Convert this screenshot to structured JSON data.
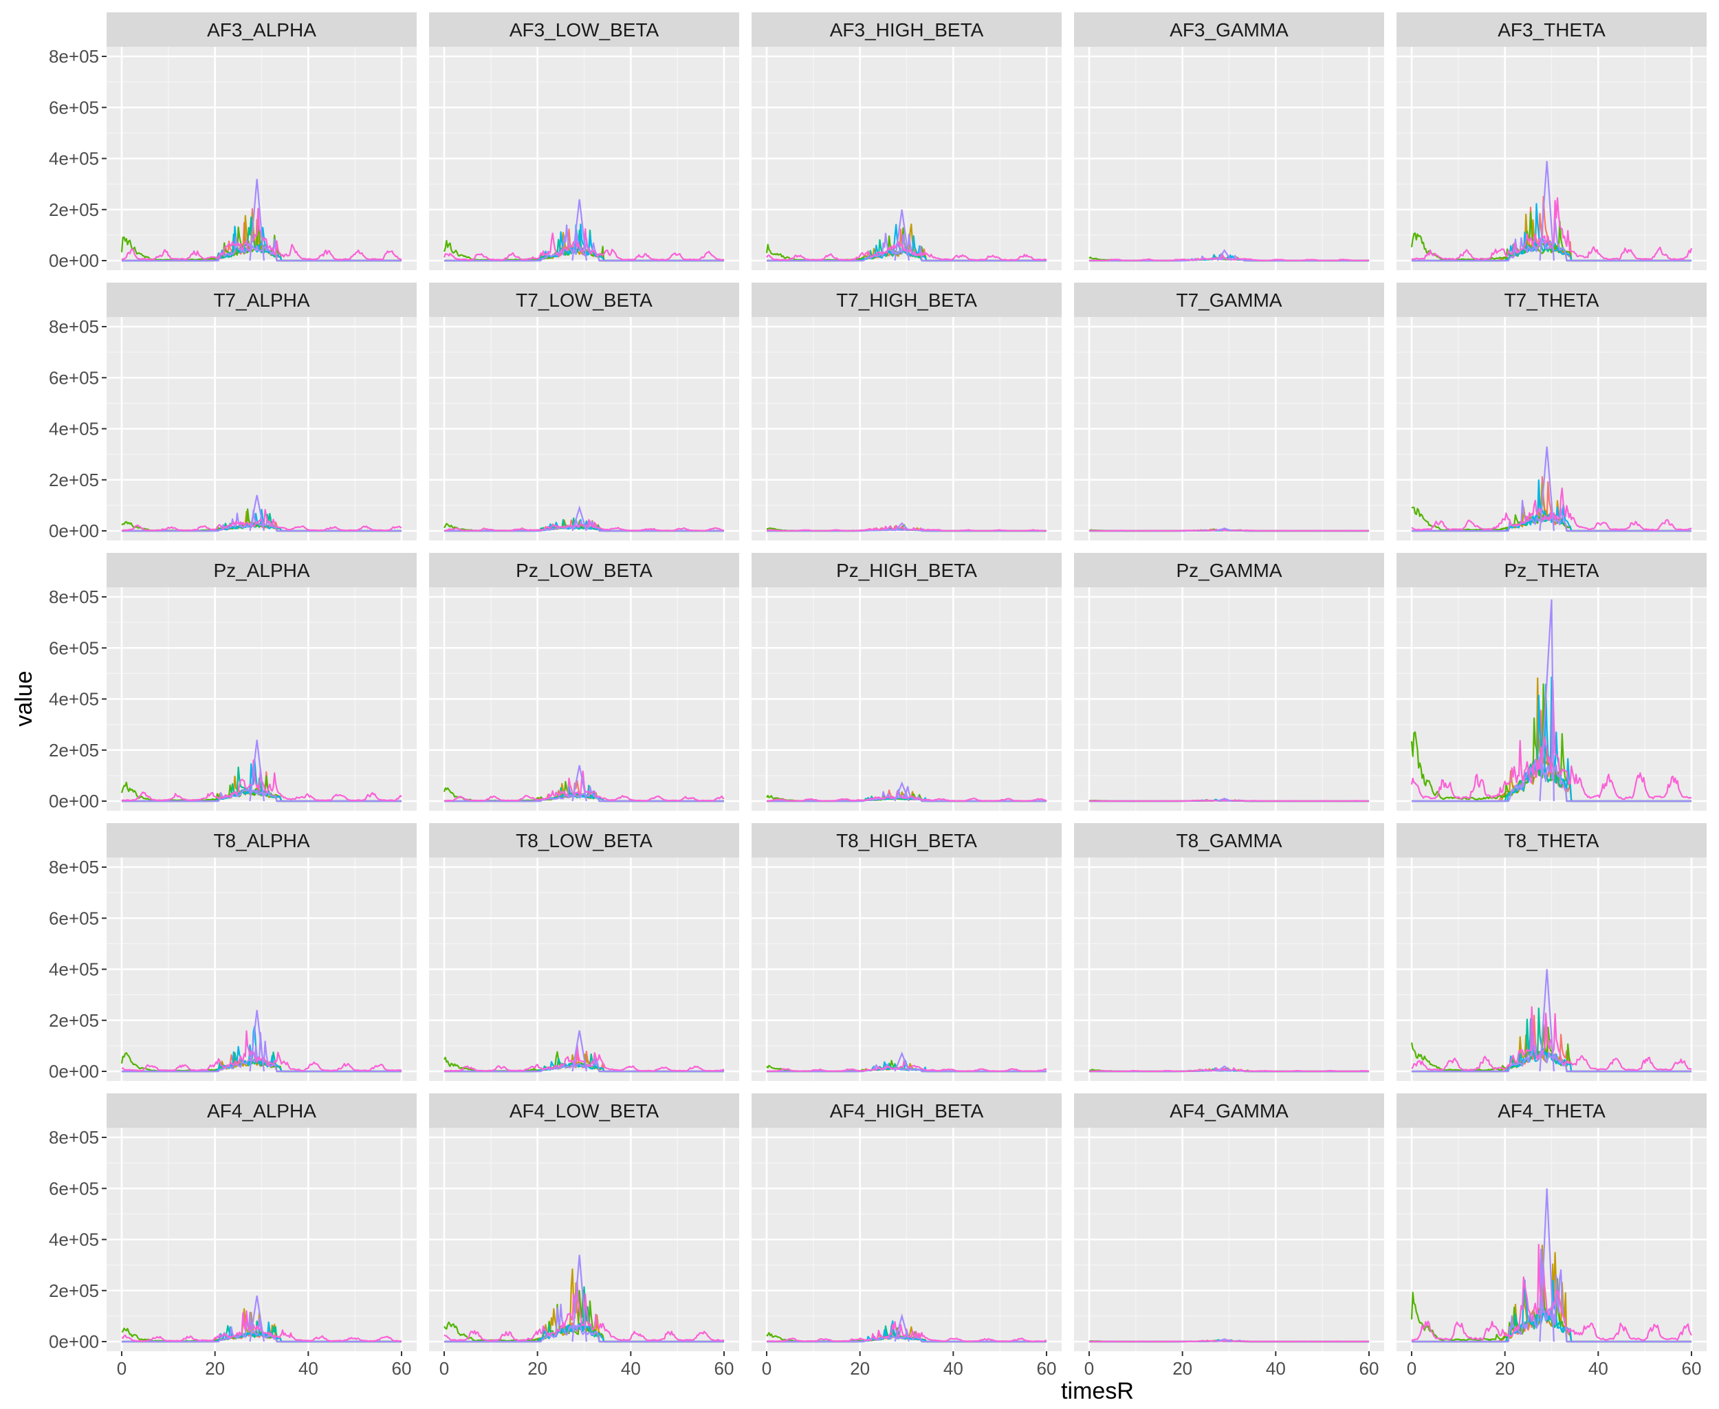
{
  "chart_data": {
    "type": "line",
    "layout": "facet-grid",
    "xlabel": "timesR",
    "ylabel": "value",
    "xlim": [
      0,
      60
    ],
    "ylim": [
      0,
      800000
    ],
    "x_ticks": [
      0,
      20,
      40,
      60
    ],
    "x_tick_labels": [
      "0",
      "20",
      "40",
      "60"
    ],
    "y_ticks": [
      0,
      200000,
      400000,
      600000,
      800000
    ],
    "y_tick_labels": [
      "0e+00",
      "2e+05",
      "4e+05",
      "6e+05",
      "8e+05"
    ],
    "grid": true,
    "legend": "none",
    "series_colors": [
      "#F8766D",
      "#C49A00",
      "#53B400",
      "#00C094",
      "#00B6EB",
      "#A58AFF",
      "#FB61D7"
    ],
    "facets": [
      {
        "row": 0,
        "col": 0,
        "label": "AF3_ALPHA",
        "max_value": 320000
      },
      {
        "row": 0,
        "col": 1,
        "label": "AF3_LOW_BETA",
        "max_value": 240000
      },
      {
        "row": 0,
        "col": 2,
        "label": "AF3_HIGH_BETA",
        "max_value": 200000
      },
      {
        "row": 0,
        "col": 3,
        "label": "AF3_GAMMA",
        "max_value": 40000
      },
      {
        "row": 0,
        "col": 4,
        "label": "AF3_THETA",
        "max_value": 390000
      },
      {
        "row": 1,
        "col": 0,
        "label": "T7_ALPHA",
        "max_value": 140000
      },
      {
        "row": 1,
        "col": 1,
        "label": "T7_LOW_BETA",
        "max_value": 90000
      },
      {
        "row": 1,
        "col": 2,
        "label": "T7_HIGH_BETA",
        "max_value": 30000
      },
      {
        "row": 1,
        "col": 3,
        "label": "T7_GAMMA",
        "max_value": 10000
      },
      {
        "row": 1,
        "col": 4,
        "label": "T7_THETA",
        "max_value": 330000
      },
      {
        "row": 2,
        "col": 0,
        "label": "Pz_ALPHA",
        "max_value": 240000
      },
      {
        "row": 2,
        "col": 1,
        "label": "Pz_LOW_BETA",
        "max_value": 140000
      },
      {
        "row": 2,
        "col": 2,
        "label": "Pz_HIGH_BETA",
        "max_value": 70000
      },
      {
        "row": 2,
        "col": 3,
        "label": "Pz_GAMMA",
        "max_value": 10000
      },
      {
        "row": 2,
        "col": 4,
        "label": "Pz_THETA",
        "max_value": 790000
      },
      {
        "row": 3,
        "col": 0,
        "label": "T8_ALPHA",
        "max_value": 240000
      },
      {
        "row": 3,
        "col": 1,
        "label": "T8_LOW_BETA",
        "max_value": 160000
      },
      {
        "row": 3,
        "col": 2,
        "label": "T8_HIGH_BETA",
        "max_value": 70000
      },
      {
        "row": 3,
        "col": 3,
        "label": "T8_GAMMA",
        "max_value": 20000
      },
      {
        "row": 3,
        "col": 4,
        "label": "T8_THETA",
        "max_value": 400000
      },
      {
        "row": 4,
        "col": 0,
        "label": "AF4_ALPHA",
        "max_value": 180000
      },
      {
        "row": 4,
        "col": 1,
        "label": "AF4_LOW_BETA",
        "max_value": 340000
      },
      {
        "row": 4,
        "col": 2,
        "label": "AF4_HIGH_BETA",
        "max_value": 100000
      },
      {
        "row": 4,
        "col": 3,
        "label": "AF4_GAMMA",
        "max_value": 10000
      },
      {
        "row": 4,
        "col": 4,
        "label": "AF4_THETA",
        "max_value": 600000
      }
    ]
  }
}
